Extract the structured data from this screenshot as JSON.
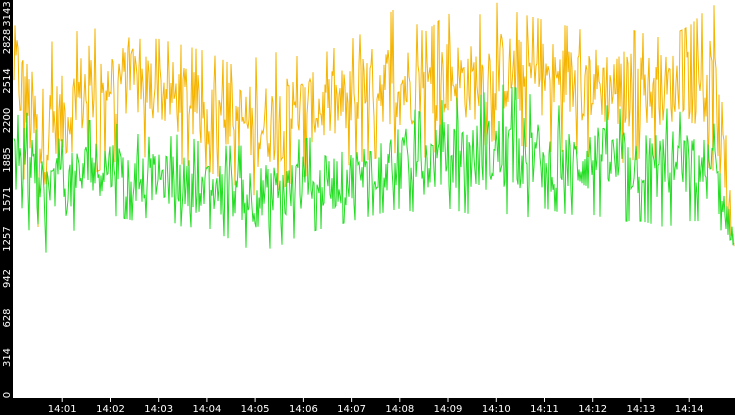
{
  "chart_data": {
    "type": "line",
    "title": "",
    "xlabel": "",
    "ylabel": "",
    "grid": false,
    "legend": "none",
    "ylim": [
      0,
      3143
    ],
    "x_range_minutes": [
      0,
      14.93
    ],
    "y_ticks": [
      "0",
      "314",
      "628",
      "942",
      "1257",
      "1571",
      "1885",
      "2200",
      "2514",
      "2828",
      "3143"
    ],
    "x_ticks": [
      {
        "label": "14:01",
        "minute": 1
      },
      {
        "label": "14:02",
        "minute": 2
      },
      {
        "label": "14:03",
        "minute": 3
      },
      {
        "label": "14:04",
        "minute": 4
      },
      {
        "label": "14:05",
        "minute": 5
      },
      {
        "label": "14:06",
        "minute": 6
      },
      {
        "label": "14:07",
        "minute": 7
      },
      {
        "label": "14:08",
        "minute": 8
      },
      {
        "label": "14:09",
        "minute": 9
      },
      {
        "label": "14:10",
        "minute": 10
      },
      {
        "label": "14:11",
        "minute": 11
      },
      {
        "label": "14:12",
        "minute": 12
      },
      {
        "label": "14:13",
        "minute": 13
      },
      {
        "label": "14:14",
        "minute": 14
      }
    ],
    "series": [
      {
        "color": "#f5b400",
        "x": [
          0,
          0.5,
          1,
          1.5,
          2,
          2.5,
          3,
          3.5,
          4,
          4.5,
          5,
          5.5,
          6,
          6.5,
          7,
          7.5,
          8,
          8.5,
          9,
          9.5,
          10,
          10.5,
          11,
          11.5,
          12,
          12.5,
          13,
          13.5,
          14,
          14.5,
          14.93
        ],
        "values": [
          2650,
          2050,
          2200,
          2450,
          2550,
          2500,
          2450,
          2350,
          2250,
          2250,
          2150,
          2200,
          2300,
          2300,
          2350,
          2500,
          2500,
          2450,
          2550,
          2500,
          2600,
          2550,
          2550,
          2500,
          2500,
          2450,
          2450,
          2450,
          2500,
          2450,
          1300
        ],
        "min": [
          2000,
          1350,
          1650,
          1750,
          1850,
          1950,
          1850,
          1850,
          1800,
          1700,
          1600,
          1650,
          1750,
          1800,
          1850,
          1900,
          1950,
          1900,
          2000,
          1950,
          2050,
          2000,
          1950,
          1950,
          1900,
          1850,
          1900,
          1900,
          1900,
          1800,
          1200
        ],
        "max": [
          3100,
          2800,
          2850,
          2950,
          2900,
          2850,
          2850,
          2800,
          2750,
          2650,
          2700,
          2750,
          2700,
          2750,
          2850,
          2950,
          3130,
          2900,
          3050,
          3000,
          3140,
          3050,
          3000,
          2950,
          2900,
          2950,
          2900,
          2850,
          2950,
          3143,
          2400
        ]
      },
      {
        "color": "#22dd22",
        "x": [
          0,
          0.5,
          1,
          1.5,
          2,
          2.5,
          3,
          3.5,
          4,
          4.5,
          5,
          5.5,
          6,
          6.5,
          7,
          7.5,
          8,
          8.5,
          9,
          9.5,
          10,
          10.5,
          11,
          11.5,
          12,
          12.5,
          13,
          13.5,
          14,
          14.5,
          14.93
        ],
        "values": [
          2100,
          1650,
          1650,
          1800,
          1850,
          1750,
          1750,
          1700,
          1650,
          1650,
          1600,
          1600,
          1700,
          1700,
          1750,
          1850,
          1900,
          1850,
          1950,
          1900,
          1950,
          1950,
          1900,
          1850,
          1900,
          1850,
          1850,
          1850,
          1850,
          1800,
          1250
        ],
        "min": [
          1700,
          1100,
          1250,
          1400,
          1450,
          1400,
          1450,
          1350,
          1350,
          1250,
          1150,
          1200,
          1300,
          1350,
          1400,
          1450,
          1500,
          1450,
          1500,
          1450,
          1500,
          1400,
          1500,
          1450,
          1450,
          1400,
          1400,
          1350,
          1400,
          1400,
          1200
        ],
        "max": [
          2450,
          2100,
          2050,
          2200,
          2200,
          2100,
          2050,
          2100,
          2000,
          2000,
          2000,
          2050,
          2050,
          2100,
          2150,
          2250,
          2350,
          2250,
          2400,
          2350,
          2500,
          2450,
          2350,
          2300,
          2350,
          2300,
          2250,
          2300,
          2250,
          2200,
          1500
        ]
      }
    ]
  }
}
